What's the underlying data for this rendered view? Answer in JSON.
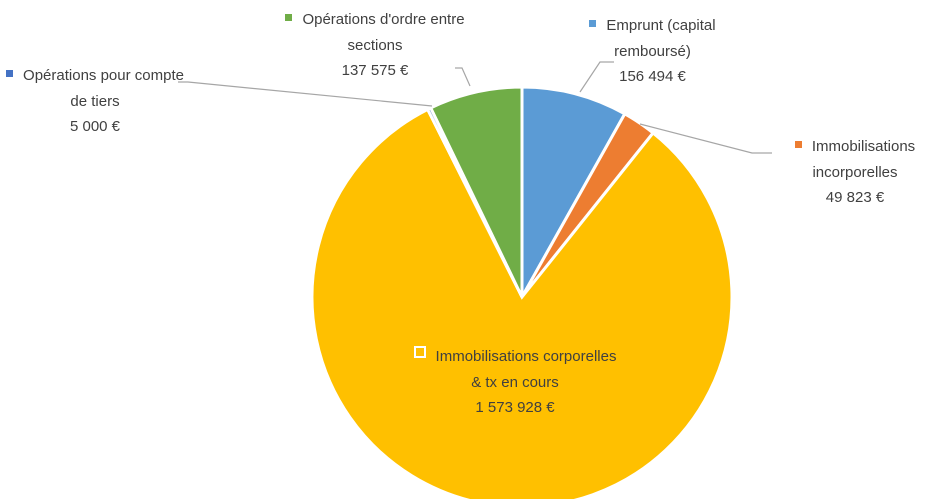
{
  "chart_data": {
    "type": "pie",
    "categories": [
      "Emprunt (capital remboursé)",
      "Immobilisations incorporelles",
      "Immobilisations corporelles & tx en cours",
      "Opérations pour compte de tiers",
      "Opérations d'ordre entre sections"
    ],
    "values": [
      156494,
      49823,
      1573928,
      5000,
      137575
    ],
    "value_labels": [
      "156 494 €",
      "49 823 €",
      "1 573 928 €",
      "5 000 €",
      "137 575 €"
    ],
    "colors": [
      "#5b9bd5",
      "#ed7d31",
      "#ffc000",
      "#4472c4",
      "#70ad47"
    ]
  }
}
